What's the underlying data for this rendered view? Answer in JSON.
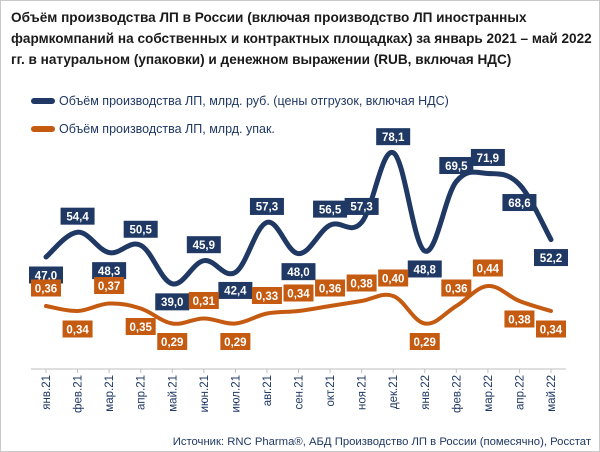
{
  "title": "Объём производства ЛП в России (включая производство ЛП иностранных фармкомпаний на собственных и контрактных площадках) за январь 2021 – май 2022 гг. в натуральном (упаковки) и денежном выражении (RUB, включая НДС)",
  "source": "Источник: RNC Pharma®, АБД Производство ЛП в России (помесячно), Росстат",
  "colors": {
    "series_value": "#1f3864",
    "series_units": "#c55a11",
    "axis_text": "#1f3864"
  },
  "chart_data": {
    "type": "line",
    "title": "Объём производства ЛП в России (включая производство ЛП иностранных фармкомпаний на собственных и контрактных площадках) за январь 2021 – май 2022 гг. в натуральном (упаковки) и денежном выражении (RUB, включая НДС)",
    "categories": [
      "янв.21",
      "фев.21",
      "мар.21",
      "апр.21",
      "май.21",
      "июн.21",
      "июл.21",
      "авг.21",
      "сен.21",
      "окт.21",
      "ноя.21",
      "дек.21",
      "янв.22",
      "фев.22",
      "мар.22",
      "апр.22",
      "май.22"
    ],
    "series": [
      {
        "name": "Объём производства ЛП, млрд. руб. (цены отгрузок, включая НДС)",
        "values": [
          47.0,
          54.4,
          48.3,
          50.5,
          39.0,
          45.9,
          42.4,
          57.3,
          48.0,
          56.5,
          57.3,
          78.1,
          48.8,
          69.5,
          71.9,
          68.6,
          52.2
        ],
        "labels": [
          "47,0",
          "54,4",
          "48,3",
          "50,5",
          "39,0",
          "45,9",
          "42,4",
          "57,3",
          "48,0",
          "56,5",
          "57,3",
          "78,1",
          "48,8",
          "69,5",
          "71,9",
          "68,6",
          "52,2"
        ],
        "color": "#1f3864"
      },
      {
        "name": "Объём производства ЛП, млрд. упак.",
        "values": [
          0.36,
          0.34,
          0.37,
          0.35,
          0.29,
          0.31,
          0.29,
          0.33,
          0.34,
          0.36,
          0.38,
          0.4,
          0.29,
          0.36,
          0.44,
          0.38,
          0.34
        ],
        "labels": [
          "0,36",
          "0,34",
          "0,37",
          "0,35",
          "0,29",
          "0,31",
          "0,29",
          "0,33",
          "0,34",
          "0,36",
          "0,38",
          "0,40",
          "0,29",
          "0,36",
          "0,44",
          "0,38",
          "0,34"
        ],
        "color": "#c55a11"
      }
    ],
    "legend_position": "top-left",
    "grid": false,
    "smooth": true
  }
}
